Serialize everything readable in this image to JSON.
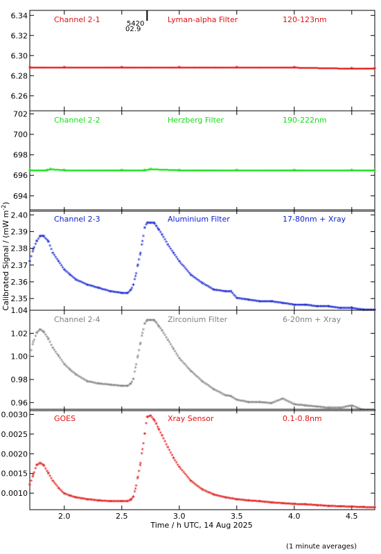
{
  "figure": {
    "ylabel": "Calibrated Signal / (mW m",
    "ylabel_sup": "-2",
    "ylabel_end": ")",
    "xlabel": "Time / h UTC, 14 Aug 2025",
    "note": "(1 minute averages)",
    "marker_labels": [
      "5420",
      "02.9"
    ],
    "marker_x": 2.72,
    "x_ticks": [
      "2.0",
      "2.5",
      "3.0",
      "3.5",
      "4.0",
      "4.5"
    ],
    "xlim": [
      1.7,
      4.7
    ]
  },
  "chart_data": [
    {
      "type": "scatter",
      "channel": "Channel 2-1",
      "filter": "Lyman-alpha Filter",
      "band": "120-123nm",
      "color": "#e01010",
      "ylim": [
        6.245,
        6.345
      ],
      "y_ticks": [
        "6.26",
        "6.28",
        "6.30",
        "6.32",
        "6.34"
      ],
      "x": [
        1.7,
        2.0,
        2.5,
        3.0,
        3.5,
        4.0,
        4.5,
        4.7
      ],
      "y": [
        6.288,
        6.288,
        6.288,
        6.288,
        6.288,
        6.288,
        6.287,
        6.287
      ]
    },
    {
      "type": "scatter",
      "channel": "Channel 2-2",
      "filter": "Herzberg Filter",
      "band": "190-222nm",
      "color": "#10e010",
      "ylim": [
        692.5,
        702.3
      ],
      "y_ticks": [
        "694",
        "696",
        "698",
        "700",
        "702"
      ],
      "x": [
        1.7,
        1.85,
        1.88,
        2.0,
        2.5,
        2.7,
        2.75,
        3.0,
        3.5,
        4.0,
        4.5,
        4.7
      ],
      "y": [
        696.5,
        696.5,
        696.6,
        696.5,
        696.5,
        696.5,
        696.6,
        696.5,
        696.5,
        696.5,
        696.5,
        696.5
      ]
    },
    {
      "type": "scatter",
      "channel": "Channel 2-3",
      "filter": "Aluminium Filter",
      "band": "17-80nm + Xray",
      "color": "#1020d0",
      "ylim": [
        2.343,
        2.403
      ],
      "y_ticks": [
        "2.35",
        "2.36",
        "2.37",
        "2.38",
        "2.39",
        "2.40"
      ],
      "x": [
        1.7,
        1.73,
        1.76,
        1.79,
        1.82,
        1.86,
        1.9,
        1.95,
        2.0,
        2.05,
        2.1,
        2.2,
        2.3,
        2.4,
        2.5,
        2.55,
        2.58,
        2.6,
        2.62,
        2.64,
        2.66,
        2.68,
        2.7,
        2.72,
        2.75,
        2.78,
        2.8,
        2.82,
        2.85,
        2.9,
        2.95,
        3.0,
        3.1,
        3.2,
        3.3,
        3.4,
        3.45,
        3.5,
        3.6,
        3.7,
        3.8,
        3.9,
        4.0,
        4.1,
        4.2,
        4.3,
        4.4,
        4.5,
        4.6,
        4.7
      ],
      "y": [
        2.372,
        2.379,
        2.384,
        2.387,
        2.387,
        2.384,
        2.377,
        2.372,
        2.367,
        2.364,
        2.361,
        2.358,
        2.356,
        2.354,
        2.353,
        2.353,
        2.355,
        2.358,
        2.363,
        2.37,
        2.376,
        2.384,
        2.392,
        2.395,
        2.395,
        2.395,
        2.393,
        2.391,
        2.388,
        2.382,
        2.377,
        2.372,
        2.364,
        2.359,
        2.355,
        2.354,
        2.354,
        2.35,
        2.349,
        2.348,
        2.348,
        2.347,
        2.346,
        2.346,
        2.345,
        2.345,
        2.344,
        2.344,
        2.343,
        2.343
      ]
    },
    {
      "type": "scatter",
      "channel": "Channel 2-4",
      "filter": "Zirconium Filter",
      "band": "6-20nm + Xray",
      "color": "#808080",
      "ylim": [
        0.953,
        1.04
      ],
      "y_ticks": [
        "0.96",
        "0.98",
        "1.00",
        "1.02",
        "1.04"
      ],
      "x": [
        1.7,
        1.73,
        1.76,
        1.79,
        1.82,
        1.86,
        1.9,
        1.95,
        2.0,
        2.05,
        2.1,
        2.2,
        2.3,
        2.4,
        2.5,
        2.55,
        2.58,
        2.6,
        2.62,
        2.64,
        2.66,
        2.68,
        2.7,
        2.72,
        2.75,
        2.78,
        2.8,
        2.82,
        2.85,
        2.9,
        2.95,
        3.0,
        3.1,
        3.2,
        3.3,
        3.4,
        3.45,
        3.5,
        3.6,
        3.7,
        3.8,
        3.9,
        4.0,
        4.1,
        4.2,
        4.3,
        4.4,
        4.5,
        4.6,
        4.7
      ],
      "y": [
        1.0,
        1.012,
        1.02,
        1.023,
        1.021,
        1.015,
        1.007,
        1.0,
        0.993,
        0.988,
        0.984,
        0.978,
        0.976,
        0.975,
        0.974,
        0.974,
        0.976,
        0.98,
        0.99,
        1.0,
        1.01,
        1.02,
        1.028,
        1.031,
        1.031,
        1.031,
        1.029,
        1.026,
        1.022,
        1.014,
        1.006,
        0.998,
        0.987,
        0.978,
        0.971,
        0.966,
        0.965,
        0.962,
        0.96,
        0.96,
        0.959,
        0.963,
        0.958,
        0.957,
        0.956,
        0.955,
        0.955,
        0.957,
        0.953,
        0.953
      ]
    },
    {
      "type": "scatter",
      "channel": "GOES",
      "filter": "Xray Sensor",
      "band": "0.1-0.8nm",
      "color": "#e01010",
      "ylim": [
        0.00058,
        0.00313
      ],
      "y_ticks": [
        "0.0010",
        "0.0015",
        "0.0020",
        "0.0025",
        "0.0030"
      ],
      "x": [
        1.7,
        1.73,
        1.76,
        1.79,
        1.82,
        1.86,
        1.9,
        1.95,
        2.0,
        2.05,
        2.1,
        2.2,
        2.3,
        2.4,
        2.5,
        2.55,
        2.58,
        2.6,
        2.62,
        2.64,
        2.66,
        2.68,
        2.7,
        2.72,
        2.75,
        2.78,
        2.8,
        2.82,
        2.85,
        2.9,
        2.95,
        3.0,
        3.1,
        3.2,
        3.3,
        3.4,
        3.5,
        3.6,
        3.7,
        3.8,
        3.9,
        4.0,
        4.1,
        4.2,
        4.3,
        4.4,
        4.5,
        4.6,
        4.7
      ],
      "y": [
        0.0012,
        0.00145,
        0.0017,
        0.00175,
        0.0017,
        0.0015,
        0.0013,
        0.00112,
        0.00098,
        0.00092,
        0.00088,
        0.00083,
        0.0008,
        0.00078,
        0.00078,
        0.00078,
        0.00082,
        0.0009,
        0.0011,
        0.0014,
        0.0017,
        0.0021,
        0.0025,
        0.00292,
        0.00295,
        0.00285,
        0.00275,
        0.00262,
        0.00245,
        0.00215,
        0.00188,
        0.00165,
        0.0013,
        0.00108,
        0.00095,
        0.00088,
        0.00083,
        0.0008,
        0.00078,
        0.00075,
        0.00073,
        0.00071,
        0.0007,
        0.00068,
        0.00066,
        0.00065,
        0.00064,
        0.00063,
        0.00062
      ]
    }
  ]
}
